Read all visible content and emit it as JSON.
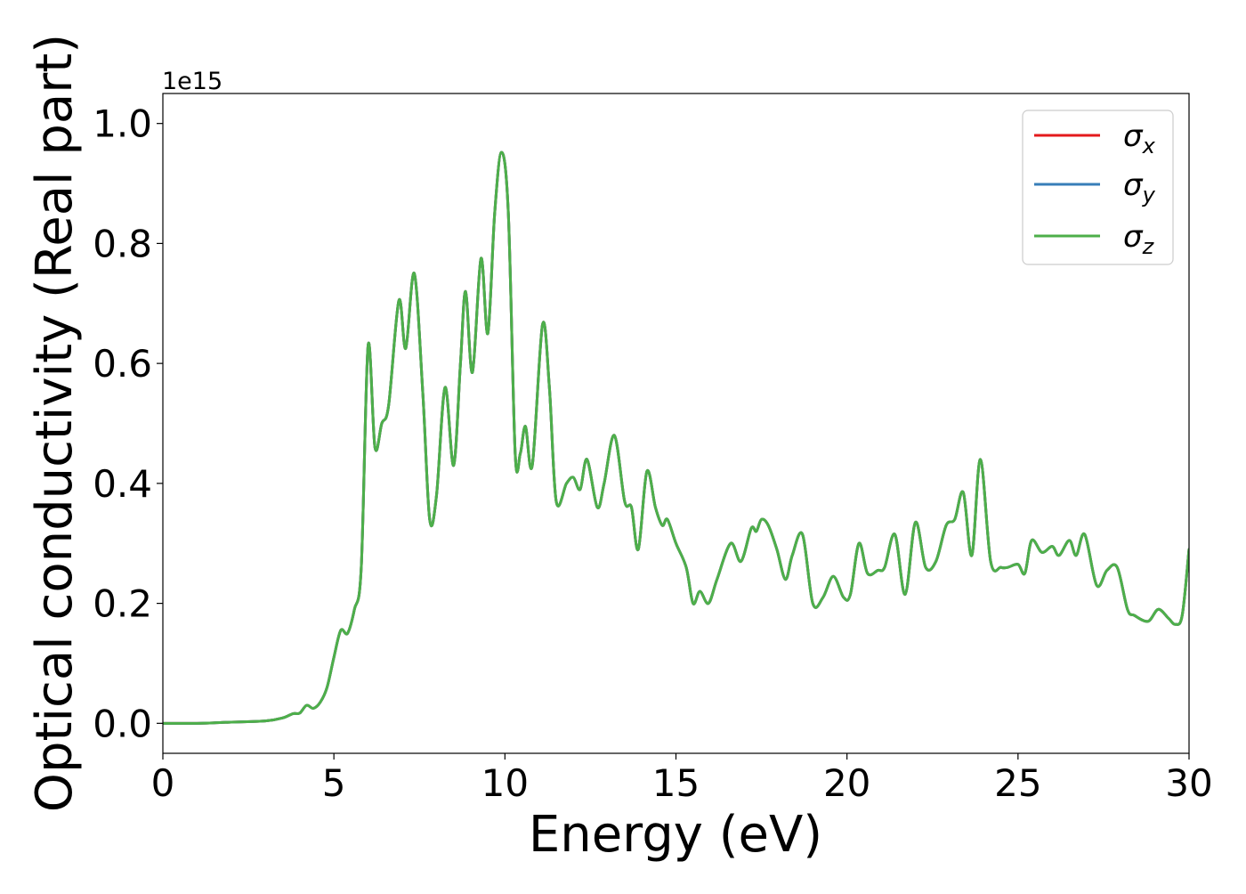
{
  "chart_data": {
    "type": "line",
    "title": "",
    "xlabel": "Energy (eV)",
    "ylabel": "Optical conductivity (Real part)",
    "offset_text": "1e15",
    "y_scale_factor": 1000000000000000.0,
    "xlim": [
      0,
      30
    ],
    "ylim": [
      -0.05,
      1.05
    ],
    "xticks": [
      0,
      5,
      10,
      15,
      20,
      25,
      30
    ],
    "xtick_labels": [
      "0",
      "5",
      "10",
      "15",
      "20",
      "25",
      "30"
    ],
    "yticks": [
      0.0,
      0.2,
      0.4,
      0.6,
      0.8,
      1.0
    ],
    "ytick_labels": [
      "0.0",
      "0.2",
      "0.4",
      "0.6",
      "0.8",
      "1.0"
    ],
    "grid": false,
    "legend_position": "upper right",
    "series": [
      {
        "name": "σx",
        "legend_symbol": "σ",
        "legend_subscript": "x",
        "color": "#e41a1c"
      },
      {
        "name": "σy",
        "legend_symbol": "σ",
        "legend_subscript": "y",
        "color": "#377eb8"
      },
      {
        "name": "σz",
        "legend_symbol": "σ",
        "legend_subscript": "z",
        "color": "#4daf4a"
      }
    ],
    "x": [
      0,
      1,
      2,
      3,
      3.5,
      3.8,
      4.0,
      4.2,
      4.4,
      4.6,
      4.8,
      5.0,
      5.2,
      5.4,
      5.6,
      5.8,
      6.0,
      6.2,
      6.4,
      6.6,
      6.9,
      7.1,
      7.35,
      7.6,
      7.8,
      8.0,
      8.25,
      8.5,
      8.7,
      8.85,
      9.05,
      9.3,
      9.5,
      9.7,
      9.9,
      10.1,
      10.3,
      10.45,
      10.6,
      10.8,
      11.1,
      11.3,
      11.5,
      11.8,
      12.0,
      12.2,
      12.4,
      12.7,
      12.9,
      13.2,
      13.5,
      13.7,
      13.9,
      14.15,
      14.4,
      14.6,
      14.75,
      15.0,
      15.3,
      15.5,
      15.7,
      15.95,
      16.2,
      16.6,
      16.9,
      17.2,
      17.35,
      17.5,
      17.7,
      17.95,
      18.2,
      18.4,
      18.7,
      19.0,
      19.3,
      19.6,
      19.9,
      20.1,
      20.35,
      20.6,
      20.9,
      21.1,
      21.4,
      21.7,
      22.0,
      22.3,
      22.6,
      22.9,
      23.15,
      23.4,
      23.65,
      23.9,
      24.2,
      24.5,
      24.7,
      25.0,
      25.2,
      25.4,
      25.7,
      26.0,
      26.2,
      26.5,
      26.7,
      26.95,
      27.3,
      27.6,
      27.9,
      28.2,
      28.4,
      28.8,
      29.1,
      29.4,
      29.6,
      29.8,
      30.0
    ],
    "y": [
      0.0,
      0.0,
      0.002,
      0.004,
      0.009,
      0.016,
      0.017,
      0.03,
      0.025,
      0.035,
      0.06,
      0.11,
      0.155,
      0.15,
      0.19,
      0.26,
      0.63,
      0.46,
      0.5,
      0.53,
      0.705,
      0.625,
      0.75,
      0.55,
      0.34,
      0.38,
      0.56,
      0.43,
      0.6,
      0.72,
      0.585,
      0.775,
      0.65,
      0.85,
      0.952,
      0.85,
      0.45,
      0.45,
      0.495,
      0.43,
      0.665,
      0.56,
      0.37,
      0.4,
      0.41,
      0.39,
      0.44,
      0.36,
      0.4,
      0.48,
      0.37,
      0.36,
      0.29,
      0.42,
      0.36,
      0.33,
      0.34,
      0.3,
      0.26,
      0.2,
      0.22,
      0.2,
      0.24,
      0.3,
      0.27,
      0.325,
      0.32,
      0.34,
      0.33,
      0.29,
      0.24,
      0.28,
      0.315,
      0.2,
      0.21,
      0.245,
      0.21,
      0.215,
      0.3,
      0.25,
      0.255,
      0.26,
      0.315,
      0.215,
      0.335,
      0.26,
      0.27,
      0.33,
      0.34,
      0.385,
      0.28,
      0.44,
      0.27,
      0.26,
      0.26,
      0.265,
      0.25,
      0.305,
      0.285,
      0.295,
      0.28,
      0.305,
      0.28,
      0.315,
      0.23,
      0.255,
      0.26,
      0.19,
      0.18,
      0.17,
      0.19,
      0.175,
      0.165,
      0.18,
      0.29
    ]
  }
}
